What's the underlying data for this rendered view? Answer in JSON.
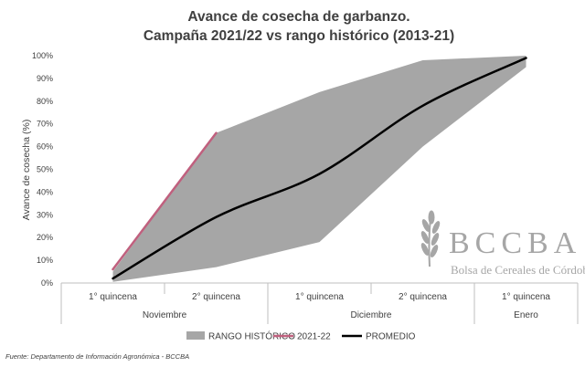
{
  "chart_data": {
    "type": "area",
    "title": "Avance de cosecha de garbanzo.",
    "subtitle": "Campaña 2021/22 vs rango histórico (2013-21)",
    "ylabel": "Avance de cosecha (%)",
    "ylim": [
      0,
      100
    ],
    "yticks": [
      "0%",
      "10%",
      "20%",
      "30%",
      "40%",
      "50%",
      "60%",
      "70%",
      "80%",
      "90%",
      "100%"
    ],
    "yticks_values": [
      0,
      10,
      20,
      30,
      40,
      50,
      60,
      70,
      80,
      90,
      100
    ],
    "categories": [
      "1° quincena",
      "2° quincena",
      "1° quincena",
      "2° quincena",
      "1° quincena"
    ],
    "groups": [
      {
        "label": "Noviembre",
        "span": [
          0,
          1
        ]
      },
      {
        "label": "Diciembre",
        "span": [
          2,
          3
        ]
      },
      {
        "label": "Enero",
        "span": [
          4,
          4
        ]
      }
    ],
    "series": [
      {
        "name": "RANGO HISTÓRICO",
        "kind": "range",
        "color": "#a6a6a6",
        "low": [
          0.5,
          7,
          18,
          60,
          95
        ],
        "high": [
          5,
          66,
          84,
          98,
          100
        ]
      },
      {
        "name": "2021-22",
        "kind": "line",
        "color": "#c0607e",
        "values": [
          6,
          66,
          null,
          null,
          null
        ]
      },
      {
        "name": "PROMEDIO",
        "kind": "line",
        "color": "#000000",
        "values": [
          2,
          29,
          48,
          78,
          99
        ]
      }
    ],
    "legend_position": "bottom",
    "grid": false
  },
  "source": "Fuente: Departamento de Información Agronómica - BCCBA",
  "logo": {
    "name": "BCCBA",
    "subtitle": "Bolsa de Cereales de Córdoba"
  }
}
